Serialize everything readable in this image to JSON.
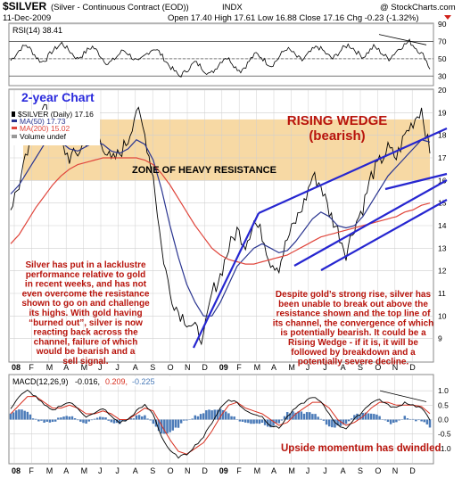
{
  "header": {
    "symbol": "$SILVER",
    "description": "(Silver - Continuous Contract (EOD))",
    "exchange": "INDX",
    "watermark": "@ StockCharts.com",
    "date": "11-Dec-2009",
    "ohlc": "Open 17.40  High 17.61  Low 16.88  Close 17.16  Chg -0.23 (-1.32%)"
  },
  "colors": {
    "price": "#000000",
    "ma50": "#2a3590",
    "ma200": "#e0463c",
    "trendline": "#2626d0",
    "resistance_band": "#f7d9a4",
    "annotation": "#b8140c",
    "label_blue": "#2a2adc",
    "macd_line": "#000000",
    "macd_signal": "#d83020",
    "macd_hist": "#4a7ab8",
    "grid": "#cfcfcf"
  },
  "chart_data": [
    {
      "type": "line",
      "panel": "rsi",
      "legend": "RSI(14) 38.41",
      "ylim": [
        20,
        90
      ],
      "y_ticks": [
        30,
        50,
        70,
        90
      ],
      "reference_lines": [
        30,
        50,
        70
      ],
      "series": [
        {
          "name": "RSI(14)",
          "values": [
            48,
            55,
            62,
            66,
            60,
            52,
            46,
            50,
            58,
            63,
            68,
            62,
            56,
            50,
            54,
            60,
            64,
            58,
            50,
            44,
            48,
            54,
            60,
            56,
            50,
            46,
            52,
            58,
            62,
            58,
            50,
            42,
            36,
            30,
            34,
            40,
            46,
            42,
            36,
            32,
            38,
            46,
            52,
            48,
            40,
            36,
            42,
            50,
            56,
            52,
            46,
            42,
            48,
            56,
            62,
            58,
            52,
            48,
            54,
            60,
            64,
            60,
            54,
            50,
            56,
            62,
            66,
            62,
            56,
            52,
            58,
            64,
            60,
            54,
            50,
            56,
            62,
            66,
            70,
            64,
            58,
            52,
            38
          ]
        }
      ],
      "notes": [
        "divergence line drawn over final peaks"
      ]
    },
    {
      "type": "line",
      "panel": "price",
      "title": "2-year Chart",
      "legend": [
        "$SILVER (Daily) 17.16",
        "MA(50) 17.73",
        "MA(200) 15.02",
        "Volume undef"
      ],
      "ylim": [
        8,
        20
      ],
      "y_ticks": [
        9,
        10,
        11,
        12,
        13,
        14,
        15,
        16,
        17,
        18,
        19,
        20
      ],
      "x_labels": [
        "08",
        "F",
        "M",
        "A",
        "M",
        "J",
        "J",
        "A",
        "S",
        "O",
        "N",
        "D",
        "09",
        "F",
        "M",
        "A",
        "M",
        "J",
        "J",
        "A",
        "S",
        "O",
        "N",
        "D"
      ],
      "x": [
        0,
        2,
        4,
        6,
        8,
        10,
        12,
        14,
        16,
        18,
        20,
        22,
        24,
        26,
        28,
        30,
        32,
        34,
        36,
        38,
        40,
        42,
        44,
        46,
        48,
        50,
        52,
        54,
        56,
        58,
        60,
        62,
        64,
        66,
        68,
        70,
        72,
        74,
        76,
        78,
        80,
        82,
        84,
        86,
        88,
        90,
        92,
        94,
        96,
        98,
        100
      ],
      "series": [
        {
          "name": "$SILVER (Daily)",
          "values": [
            14.8,
            15.8,
            17.2,
            18.0,
            19.3,
            18.2,
            17.6,
            17.0,
            17.2,
            17.8,
            18.2,
            17.6,
            16.8,
            17.2,
            17.8,
            19.2,
            18.0,
            16.2,
            13.0,
            11.0,
            10.2,
            9.8,
            9.4,
            9.0,
            11.0,
            11.8,
            13.0,
            13.8,
            13.2,
            14.2,
            13.6,
            12.4,
            12.2,
            13.4,
            14.2,
            15.0,
            16.2,
            15.8,
            14.6,
            13.8,
            12.8,
            14.0,
            14.8,
            16.2,
            16.8,
            17.4,
            17.0,
            18.0,
            18.6,
            19.2,
            17.2
          ]
        },
        {
          "name": "MA(50)",
          "values": [
            15.4,
            15.8,
            16.4,
            17.0,
            17.6,
            17.9,
            17.7,
            17.4,
            17.3,
            17.5,
            17.7,
            17.6,
            17.3,
            17.2,
            17.4,
            17.8,
            17.6,
            16.9,
            15.6,
            14.0,
            12.6,
            11.4,
            10.6,
            10.0,
            10.0,
            10.6,
            11.4,
            12.2,
            12.6,
            13.0,
            13.2,
            13.0,
            12.8,
            12.9,
            13.3,
            13.8,
            14.3,
            14.6,
            14.4,
            14.0,
            13.9,
            14.0,
            14.4,
            15.0,
            15.6,
            16.2,
            16.6,
            17.0,
            17.4,
            17.8,
            17.7
          ]
        },
        {
          "name": "MA(200)",
          "values": [
            13.2,
            13.6,
            14.2,
            14.8,
            15.3,
            15.8,
            16.2,
            16.5,
            16.7,
            16.8,
            16.9,
            17.0,
            17.0,
            17.0,
            17.0,
            17.0,
            16.9,
            16.7,
            16.3,
            15.8,
            15.2,
            14.6,
            14.0,
            13.5,
            13.0,
            12.7,
            12.5,
            12.4,
            12.3,
            12.3,
            12.4,
            12.5,
            12.6,
            12.7,
            12.9,
            13.1,
            13.3,
            13.5,
            13.6,
            13.7,
            13.8,
            13.9,
            14.0,
            14.1,
            14.2,
            14.3,
            14.4,
            14.6,
            14.7,
            14.9,
            15.0
          ]
        }
      ],
      "band": {
        "label": "ZONE OF HEAVY RESISTANCE",
        "ymin": 16.0,
        "ymax": 18.7
      },
      "annotations": [
        {
          "title": "RISING WEDGE",
          "subtitle": "(bearish)"
        },
        {
          "lines": [
            "Silver has put in a lacklustre",
            "performance relative to gold",
            "in recent weeks, and has not",
            "even overcome the resistance",
            "shown to go on and challenge",
            "its highs. With gold having",
            "“burned out”, silver is now",
            "reacting back across the",
            "channel, failure of which",
            "would be bearish and a",
            "sell signal."
          ]
        },
        {
          "lines": [
            "Despite gold’s strong rise, silver has",
            "been unable to break out above the",
            "resistance shown and the top line of",
            "its channel, the convergence of which",
            "is potentially bearish. It could be a",
            "Rising Wedge - if it is, it will be",
            "followed by breakdown and a",
            "potentially severe decline."
          ]
        }
      ]
    },
    {
      "type": "line",
      "panel": "macd",
      "legend": {
        "label": "MACD(12,26,9)",
        "macd": "-0.016,",
        "signal": "0.209,",
        "hist": "-0.225"
      },
      "ylim": [
        -1.5,
        1.5
      ],
      "y_ticks": [
        -1.0,
        -0.5,
        0.0,
        0.5,
        1.0
      ],
      "x_labels": [
        "08",
        "F",
        "M",
        "A",
        "M",
        "J",
        "J",
        "A",
        "S",
        "O",
        "N",
        "D",
        "09",
        "F",
        "M",
        "A",
        "M",
        "J",
        "J",
        "A",
        "S",
        "O",
        "N",
        "D"
      ],
      "series": [
        {
          "name": "MACD(12,26,9)",
          "values": [
            0.4,
            0.8,
            1.0,
            0.8,
            0.5,
            0.3,
            0.5,
            0.6,
            0.4,
            0.1,
            0.2,
            0.4,
            0.1,
            -0.1,
            0.0,
            0.3,
            0.5,
            0.2,
            -0.6,
            -1.1,
            -1.3,
            -1.2,
            -0.9,
            -0.6,
            -0.1,
            0.4,
            0.7,
            0.6,
            0.3,
            0.2,
            0.1,
            -0.2,
            -0.3,
            0.1,
            0.4,
            0.6,
            0.8,
            0.6,
            0.2,
            -0.2,
            -0.3,
            0.0,
            0.3,
            0.6,
            0.7,
            0.5,
            0.4,
            0.6,
            0.5,
            0.4,
            -0.02
          ]
        },
        {
          "name": "Signal",
          "values": [
            0.2,
            0.5,
            0.8,
            0.8,
            0.6,
            0.4,
            0.4,
            0.5,
            0.4,
            0.2,
            0.2,
            0.3,
            0.2,
            0.0,
            0.0,
            0.2,
            0.4,
            0.3,
            -0.2,
            -0.7,
            -1.1,
            -1.2,
            -1.0,
            -0.8,
            -0.4,
            0.1,
            0.5,
            0.6,
            0.4,
            0.3,
            0.2,
            0.0,
            -0.2,
            -0.1,
            0.2,
            0.4,
            0.6,
            0.6,
            0.4,
            0.0,
            -0.2,
            -0.1,
            0.1,
            0.4,
            0.6,
            0.6,
            0.5,
            0.5,
            0.5,
            0.45,
            0.21
          ]
        }
      ],
      "annotations": [
        {
          "text": "Upside momentum has dwindled"
        }
      ]
    }
  ]
}
